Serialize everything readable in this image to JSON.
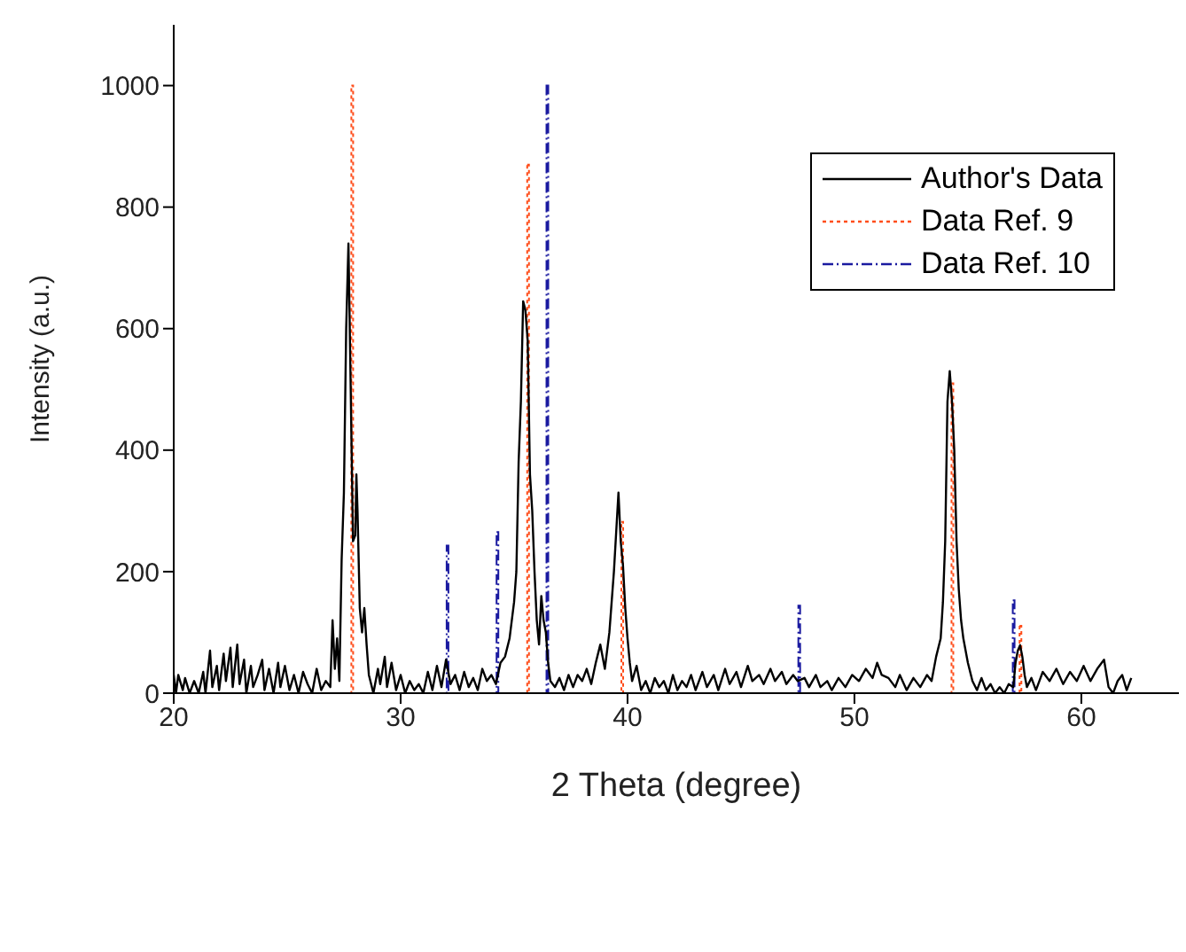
{
  "chart_data": {
    "type": "line",
    "xlabel": "2 Theta (degree)",
    "ylabel": "Intensity (a.u.)",
    "xlim": [
      20,
      64.3
    ],
    "xticks": [
      20,
      30,
      40,
      50,
      60
    ],
    "ylim": [
      0,
      1100
    ],
    "yticks": [
      0,
      200,
      400,
      600,
      800,
      1000
    ],
    "legend": "top right",
    "series": [
      {
        "name": "Author's Data",
        "color": "#000000",
        "line_style": "solid",
        "x": [
          20.0,
          20.1,
          20.2,
          20.4,
          20.5,
          20.7,
          20.9,
          21.1,
          21.3,
          21.4,
          21.6,
          21.7,
          21.9,
          22.0,
          22.2,
          22.3,
          22.5,
          22.6,
          22.8,
          22.9,
          23.1,
          23.2,
          23.4,
          23.5,
          23.7,
          23.9,
          24.0,
          24.2,
          24.4,
          24.6,
          24.7,
          24.9,
          25.1,
          25.3,
          25.5,
          25.7,
          25.9,
          26.1,
          26.3,
          26.5,
          26.7,
          26.9,
          27.0,
          27.1,
          27.2,
          27.3,
          27.4,
          27.5,
          27.6,
          27.7,
          27.8,
          27.9,
          28.0,
          28.05,
          28.1,
          28.2,
          28.3,
          28.4,
          28.5,
          28.6,
          28.8,
          29.0,
          29.1,
          29.3,
          29.4,
          29.6,
          29.8,
          30.0,
          30.2,
          30.4,
          30.6,
          30.8,
          31.0,
          31.2,
          31.4,
          31.6,
          31.8,
          32.0,
          32.2,
          32.4,
          32.6,
          32.8,
          33.0,
          33.2,
          33.4,
          33.6,
          33.8,
          34.0,
          34.2,
          34.4,
          34.6,
          34.8,
          35.0,
          35.1,
          35.2,
          35.3,
          35.4,
          35.5,
          35.6,
          35.7,
          35.8,
          35.9,
          36.0,
          36.1,
          36.2,
          36.3,
          36.4,
          36.5,
          36.6,
          36.8,
          37.0,
          37.2,
          37.4,
          37.6,
          37.8,
          38.0,
          38.2,
          38.4,
          38.6,
          38.8,
          39.0,
          39.2,
          39.4,
          39.6,
          39.7,
          39.8,
          39.9,
          40.0,
          40.1,
          40.2,
          40.4,
          40.6,
          40.8,
          41.0,
          41.2,
          41.4,
          41.6,
          41.8,
          42.0,
          42.2,
          42.4,
          42.6,
          42.8,
          43.0,
          43.3,
          43.5,
          43.8,
          44.0,
          44.3,
          44.5,
          44.8,
          45.0,
          45.3,
          45.5,
          45.8,
          46.0,
          46.3,
          46.5,
          46.8,
          47.0,
          47.3,
          47.5,
          47.8,
          48.0,
          48.3,
          48.5,
          48.8,
          49.0,
          49.3,
          49.6,
          49.9,
          50.2,
          50.5,
          50.8,
          51.0,
          51.2,
          51.5,
          51.8,
          52.0,
          52.3,
          52.6,
          52.9,
          53.2,
          53.4,
          53.6,
          53.8,
          53.9,
          54.0,
          54.1,
          54.2,
          54.3,
          54.4,
          54.5,
          54.6,
          54.7,
          54.8,
          55.0,
          55.2,
          55.4,
          55.6,
          55.8,
          56.0,
          56.2,
          56.4,
          56.6,
          56.8,
          57.0,
          57.1,
          57.2,
          57.3,
          57.4,
          57.5,
          57.6,
          57.8,
          58.0,
          58.3,
          58.6,
          58.9,
          59.2,
          59.5,
          59.8,
          60.1,
          60.4,
          60.7,
          61.0,
          61.2,
          61.4,
          61.6,
          61.8,
          62.0,
          62.2
        ],
        "values": [
          30,
          0,
          30,
          5,
          25,
          0,
          20,
          0,
          35,
          0,
          70,
          10,
          45,
          5,
          65,
          20,
          75,
          10,
          80,
          15,
          55,
          0,
          45,
          10,
          30,
          55,
          5,
          40,
          0,
          50,
          10,
          45,
          5,
          30,
          0,
          35,
          15,
          0,
          40,
          5,
          20,
          10,
          120,
          40,
          90,
          20,
          220,
          330,
          600,
          740,
          500,
          250,
          260,
          360,
          300,
          140,
          100,
          140,
          80,
          30,
          0,
          40,
          15,
          60,
          10,
          50,
          5,
          30,
          0,
          20,
          5,
          15,
          0,
          35,
          5,
          45,
          10,
          55,
          15,
          30,
          5,
          35,
          10,
          25,
          5,
          40,
          20,
          30,
          15,
          50,
          60,
          90,
          150,
          200,
          380,
          480,
          645,
          630,
          580,
          360,
          300,
          200,
          120,
          80,
          160,
          120,
          100,
          50,
          20,
          10,
          25,
          5,
          30,
          10,
          30,
          20,
          40,
          15,
          50,
          80,
          40,
          100,
          200,
          330,
          250,
          210,
          140,
          90,
          50,
          20,
          45,
          5,
          20,
          0,
          25,
          10,
          20,
          0,
          30,
          5,
          20,
          10,
          30,
          5,
          35,
          10,
          30,
          5,
          40,
          15,
          35,
          10,
          45,
          20,
          30,
          15,
          40,
          20,
          35,
          15,
          30,
          20,
          25,
          10,
          30,
          10,
          20,
          5,
          25,
          10,
          30,
          20,
          40,
          25,
          50,
          30,
          25,
          10,
          30,
          5,
          25,
          10,
          30,
          20,
          60,
          90,
          150,
          250,
          480,
          530,
          480,
          400,
          250,
          170,
          120,
          90,
          50,
          20,
          5,
          25,
          5,
          15,
          0,
          10,
          0,
          15,
          10,
          50,
          70,
          79,
          60,
          30,
          10,
          25,
          5,
          35,
          20,
          40,
          15,
          35,
          20,
          45,
          20,
          40,
          55,
          10,
          0,
          20,
          30,
          5,
          25
        ]
      },
      {
        "name": "Data Ref. 9",
        "type": "bar",
        "color": "#ff4d1a",
        "line_style": "dotted",
        "x": [
          27.9,
          35.65,
          39.8,
          54.35,
          57.35
        ],
        "values": [
          1000,
          870,
          282,
          510,
          111
        ]
      },
      {
        "name": "Data Ref. 10",
        "type": "bar",
        "color": "#1a1aa0",
        "line_style": "dashed",
        "x": [
          32.1,
          34.3,
          36.5,
          47.6,
          57.05
        ],
        "values": [
          243,
          265,
          1000,
          144,
          153
        ]
      }
    ]
  }
}
